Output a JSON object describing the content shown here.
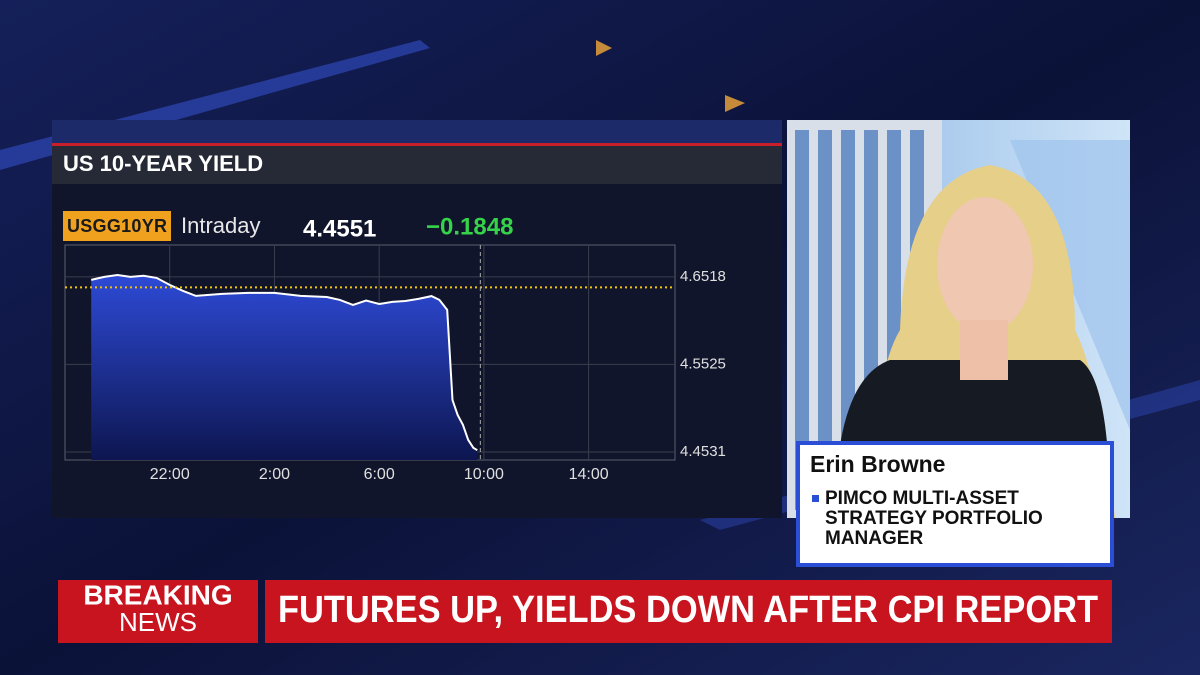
{
  "chart_data": {
    "type": "area",
    "title": "US 10-YEAR YIELD",
    "ticker": "USGG10YR",
    "period": "Intraday",
    "last": "4.4551",
    "change": "−0.1848",
    "color": "#2a46c8",
    "line_color": "#ffffff",
    "reference_color": "#f5c400",
    "reference_value": 4.6399,
    "x": [
      19,
      19.5,
      20,
      20.5,
      21,
      21.5,
      22,
      22.5,
      23,
      24,
      25,
      26,
      27,
      28,
      28.5,
      29,
      29.5,
      30,
      30.5,
      31,
      31.5,
      32,
      32.3,
      32.6,
      32.8,
      33,
      33.2,
      33.4,
      33.6,
      33.75
    ],
    "values": [
      4.6484,
      4.6518,
      4.654,
      4.6518,
      4.653,
      4.6507,
      4.6427,
      4.636,
      4.6302,
      4.6325,
      4.6336,
      4.6336,
      4.6302,
      4.629,
      4.6257,
      4.62,
      4.625,
      4.621,
      4.6234,
      4.6245,
      4.6268,
      4.63,
      4.6257,
      4.6143,
      4.512,
      4.495,
      4.484,
      4.4668,
      4.4577,
      4.4551
    ],
    "xlim": [
      18,
      41.3
    ],
    "xticks": [
      {
        "value": 22,
        "label": "22:00"
      },
      {
        "value": 26,
        "label": "2:00"
      },
      {
        "value": 30,
        "label": "6:00"
      },
      {
        "value": 34,
        "label": "10:00"
      },
      {
        "value": 38,
        "label": "14:00"
      }
    ],
    "ylim": [
      4.444,
      4.688
    ],
    "yticks": [
      4.4531,
      4.5525,
      4.6518
    ],
    "grid": true
  },
  "lower_third": {
    "name": "Erin Browne",
    "role": [
      "PIMCO MULTI-ASSET",
      "STRATEGY PORTFOLIO",
      "MANAGER"
    ]
  },
  "banner": {
    "tag": [
      "BREAKING",
      "NEWS"
    ],
    "headline": "FUTURES UP, YIELDS DOWN AFTER CPI REPORT"
  }
}
